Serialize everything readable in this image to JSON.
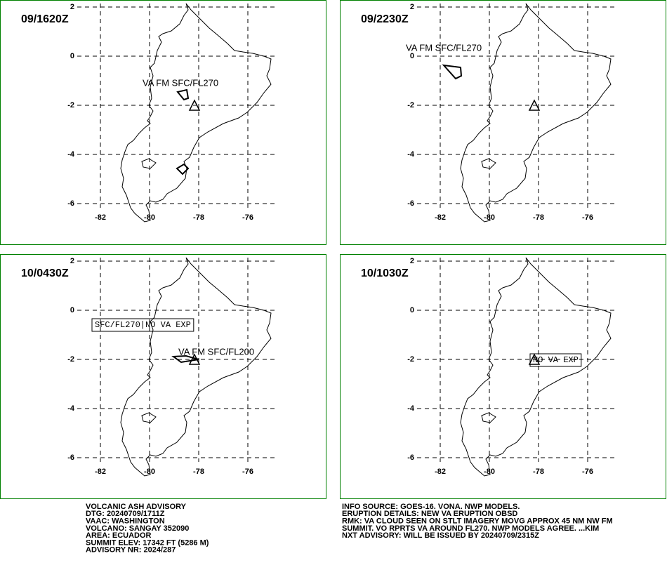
{
  "panels": [
    {
      "time": "09/1620Z",
      "annotations": [
        "VA FM SFC/FL270"
      ]
    },
    {
      "time": "09/2230Z",
      "annotations": [
        "VA FM SFC/FL270"
      ]
    },
    {
      "time": "10/0430Z",
      "annotations": [
        "SFC/FL270|NO VA EXP",
        "VA FM SFC/FL200"
      ]
    },
    {
      "time": "10/1030Z",
      "annotations": [
        "NO VA EXP"
      ]
    }
  ],
  "grid": {
    "xticks": [
      -82,
      -80,
      -78,
      -76
    ],
    "yticks": [
      2,
      0,
      -2,
      -4,
      -6
    ]
  },
  "advisory_left": [
    "VOLCANIC ASH ADVISORY",
    "DTG: 20240709/1711Z",
    "VAAC: WASHINGTON",
    "VOLCANO: SANGAY 352090",
    "AREA: ECUADOR",
    "SUMMIT ELEV: 17342 FT (5286 M)",
    "ADVISORY NR: 2024/287"
  ],
  "advisory_right": [
    "INFO SOURCE: GOES-16. VONA. NWP MODELS.",
    "ERUPTION DETAILS: NEW VA ERUPTION OBSD",
    "RMK: VA CLOUD SEEN ON STLT IMAGERY MOVG APPROX 45 NM NW FM",
    "SUMMIT. VO RPRTS VA AROUND FL270. NWP MODELS AGREE. ...KIM",
    "NXT ADVISORY: WILL BE ISSUED BY 20240709/2315Z"
  ]
}
